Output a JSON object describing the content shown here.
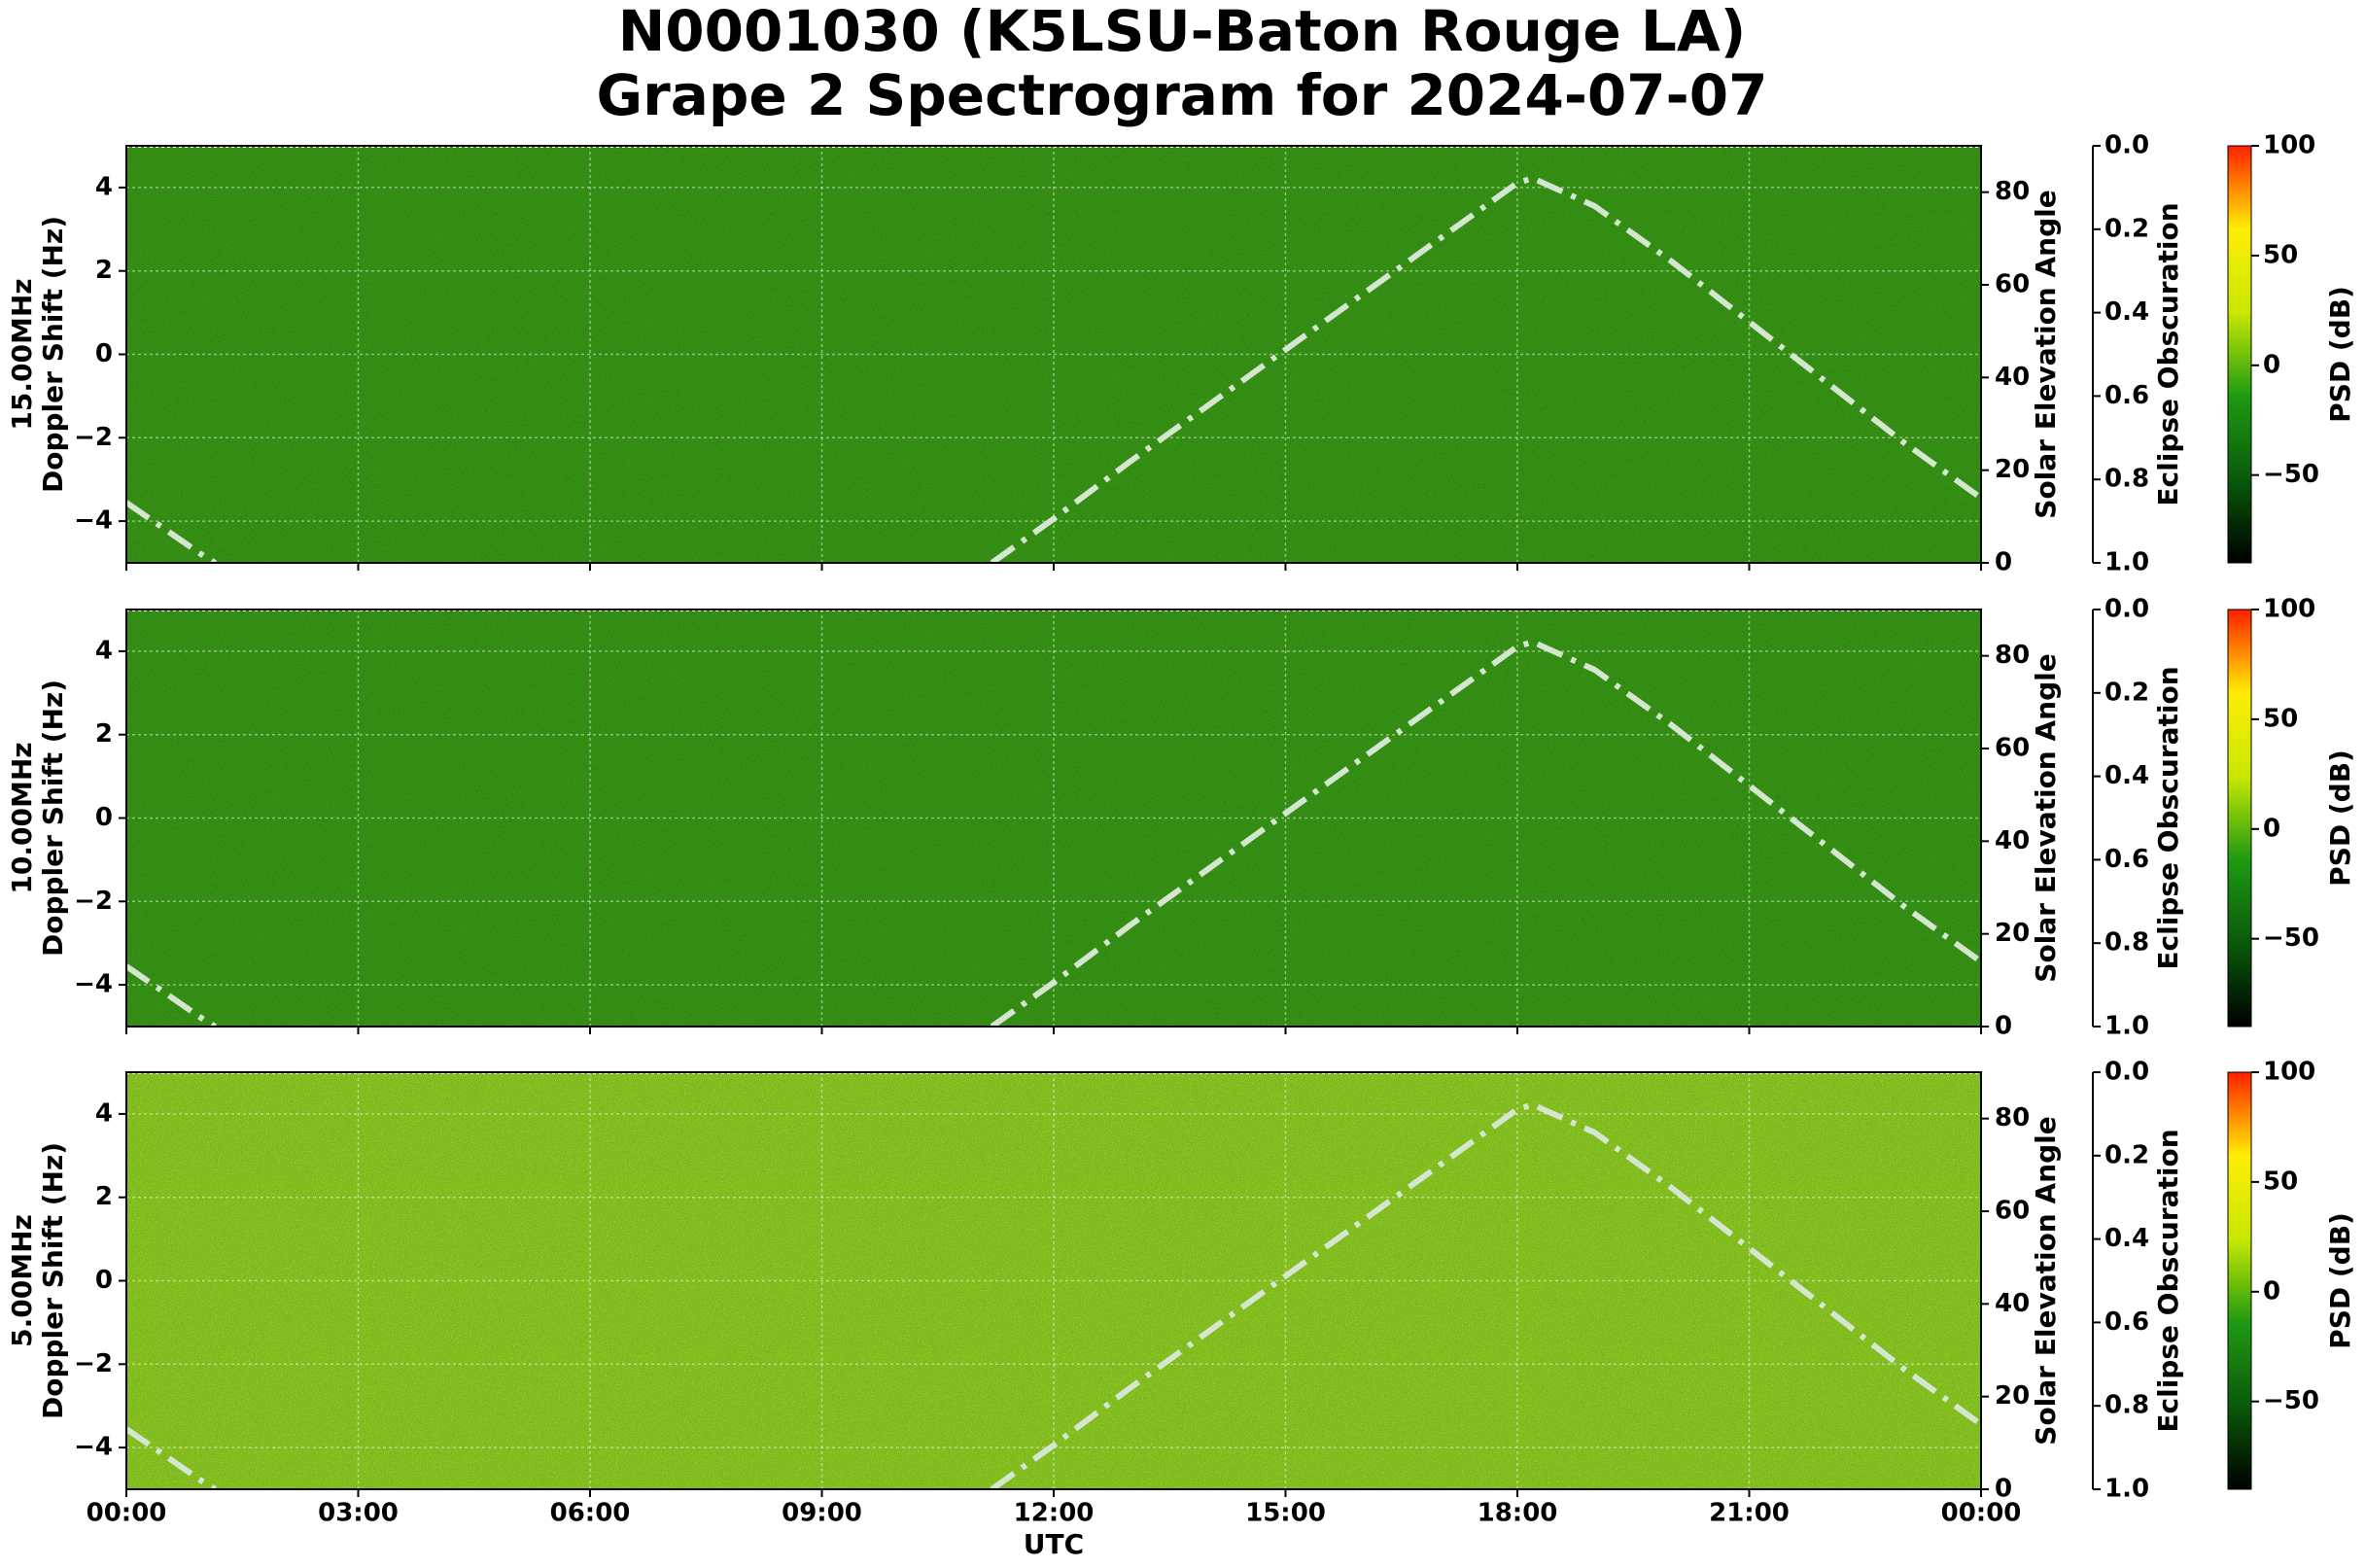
{
  "title": "N0001030 (K5LSU-Baton Rouge LA)",
  "subtitle": "Grape 2 Spectrogram for 2024-07-07",
  "chart_data": [
    {
      "type": "spectrogram",
      "frequency": "15.00MHz",
      "ylabel": "Doppler Shift (Hz)",
      "background": "#2f8a12",
      "ylim": [
        -5,
        5
      ],
      "yticks": [
        {
          "value": -4,
          "label": "−4"
        },
        {
          "value": -2,
          "label": "−2"
        },
        0,
        2,
        4
      ],
      "xlim": [
        0,
        24
      ],
      "grid": true,
      "y2lim": [
        0,
        90
      ],
      "y2ticks": [
        0,
        20,
        40,
        60,
        80
      ],
      "y3label": "Eclipse Obscuration",
      "y3lim": [
        1,
        0
      ],
      "y3ticks": [
        {
          "value": 0,
          "label": "0.0"
        },
        0.2,
        0.4,
        0.6,
        0.8,
        {
          "value": 1,
          "label": "1.0"
        }
      ],
      "series": [
        {
          "name": "Solar Elevation Angle",
          "axis": "y2",
          "color": "#d4e6d0",
          "x": [
            0,
            1,
            1.15,
            2,
            10,
            11.2,
            12,
            13,
            14,
            15,
            16,
            17,
            18,
            18.2,
            19,
            20,
            21,
            22,
            23,
            24
          ],
          "values": [
            13,
            1.5,
            0,
            null,
            null,
            0,
            9.5,
            22,
            34,
            46,
            58,
            70,
            82,
            83,
            77,
            65,
            52,
            39,
            26,
            14
          ]
        }
      ],
      "colorbar": {
        "label": "PSD (dB)",
        "lim": [
          -90,
          100
        ],
        "ticks": [
          {
            "value": -50,
            "label": "−50"
          },
          0,
          50,
          100
        ],
        "colors": [
          "#000000",
          "#0a5a0a",
          "#1f9a12",
          "#c8e800",
          "#ffee00",
          "#ff2000"
        ]
      }
    },
    {
      "type": "spectrogram",
      "frequency": "10.00MHz",
      "ylabel": "Doppler Shift (Hz)",
      "background": "#2f8a12",
      "ylim": [
        -5,
        5
      ],
      "yticks": [
        {
          "value": -4,
          "label": "−4"
        },
        {
          "value": -2,
          "label": "−2"
        },
        0,
        2,
        4
      ],
      "xlim": [
        0,
        24
      ],
      "grid": true,
      "y2lim": [
        0,
        90
      ],
      "y2ticks": [
        0,
        20,
        40,
        60,
        80
      ],
      "y3label": "Eclipse Obscuration",
      "y3lim": [
        1,
        0
      ],
      "y3ticks": [
        {
          "value": 0,
          "label": "0.0"
        },
        0.2,
        0.4,
        0.6,
        0.8,
        {
          "value": 1,
          "label": "1.0"
        }
      ],
      "series": [
        {
          "name": "Solar Elevation Angle",
          "axis": "y2",
          "color": "#d4e6d0",
          "x": [
            0,
            1,
            1.15,
            2,
            10,
            11.2,
            12,
            13,
            14,
            15,
            16,
            17,
            18,
            18.2,
            19,
            20,
            21,
            22,
            23,
            24
          ],
          "values": [
            13,
            1.5,
            0,
            null,
            null,
            0,
            9.5,
            22,
            34,
            46,
            58,
            70,
            82,
            83,
            77,
            65,
            52,
            39,
            26,
            14
          ]
        }
      ],
      "colorbar": {
        "label": "PSD (dB)",
        "lim": [
          -90,
          100
        ],
        "ticks": [
          {
            "value": -50,
            "label": "−50"
          },
          0,
          50,
          100
        ],
        "colors": [
          "#000000",
          "#0a5a0a",
          "#1f9a12",
          "#c8e800",
          "#ffee00",
          "#ff2000"
        ]
      }
    },
    {
      "type": "spectrogram",
      "frequency": "5.00MHz",
      "ylabel": "Doppler Shift (Hz)",
      "background": "#7ab81c",
      "ylim": [
        -5,
        5
      ],
      "yticks": [
        {
          "value": -4,
          "label": "−4"
        },
        {
          "value": -2,
          "label": "−2"
        },
        0,
        2,
        4
      ],
      "xlim": [
        0,
        24
      ],
      "grid": true,
      "xlabel": "UTC",
      "xticks": [
        {
          "value": 0,
          "label": "00:00"
        },
        {
          "value": 3,
          "label": "03:00"
        },
        {
          "value": 6,
          "label": "06:00"
        },
        {
          "value": 9,
          "label": "09:00"
        },
        {
          "value": 12,
          "label": "12:00"
        },
        {
          "value": 15,
          "label": "15:00"
        },
        {
          "value": 18,
          "label": "18:00"
        },
        {
          "value": 21,
          "label": "21:00"
        },
        {
          "value": 24,
          "label": "00:00"
        }
      ],
      "y2lim": [
        0,
        90
      ],
      "y2ticks": [
        0,
        20,
        40,
        60,
        80
      ],
      "y3label": "Eclipse Obscuration",
      "y3lim": [
        1,
        0
      ],
      "y3ticks": [
        {
          "value": 0,
          "label": "0.0"
        },
        0.2,
        0.4,
        0.6,
        0.8,
        {
          "value": 1,
          "label": "1.0"
        }
      ],
      "series": [
        {
          "name": "Solar Elevation Angle",
          "axis": "y2",
          "color": "#d4e6d0",
          "x": [
            0,
            1,
            1.15,
            2,
            10,
            11.2,
            12,
            13,
            14,
            15,
            16,
            17,
            18,
            18.2,
            19,
            20,
            21,
            22,
            23,
            24
          ],
          "values": [
            13,
            1.5,
            0,
            null,
            null,
            0,
            9.5,
            22,
            34,
            46,
            58,
            70,
            82,
            83,
            77,
            65,
            52,
            39,
            26,
            14
          ]
        }
      ],
      "colorbar": {
        "label": "PSD (dB)",
        "lim": [
          -90,
          100
        ],
        "ticks": [
          {
            "value": -50,
            "label": "−50"
          },
          0,
          50,
          100
        ],
        "colors": [
          "#000000",
          "#0a5a0a",
          "#1f9a12",
          "#c8e800",
          "#ffee00",
          "#ff2000"
        ]
      }
    }
  ]
}
